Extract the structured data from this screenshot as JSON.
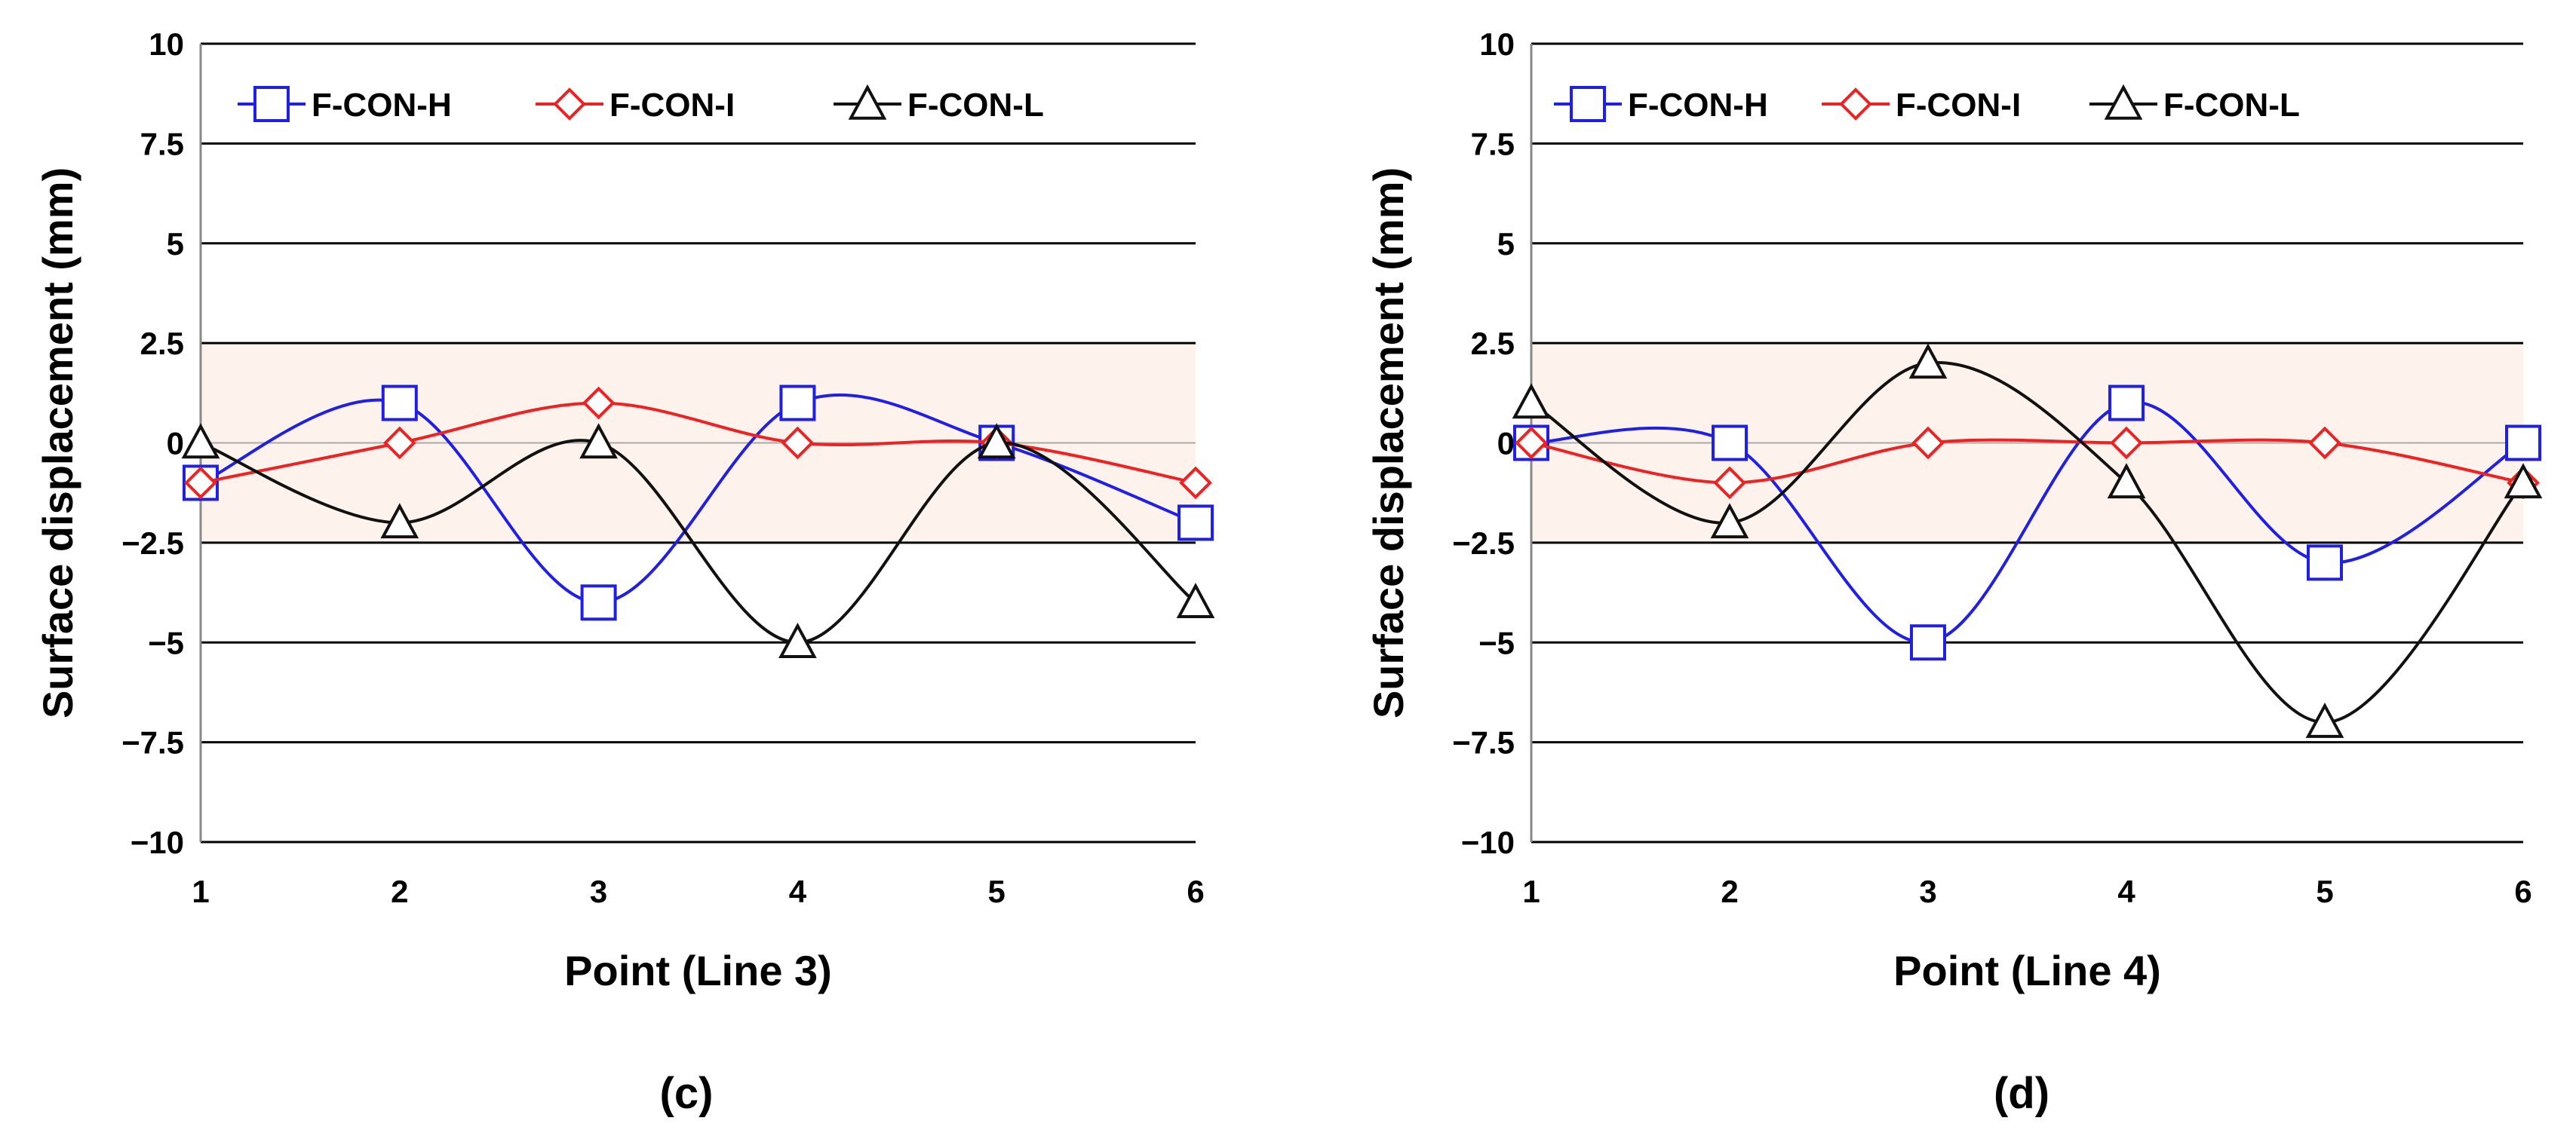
{
  "chart_data": [
    {
      "type": "line",
      "panel_label": "(c)",
      "xlabel": "Point (Line 3)",
      "ylabel": "Surface displacement (mm)",
      "x": [
        1,
        2,
        3,
        4,
        5,
        6
      ],
      "xticks": [
        "1",
        "2",
        "3",
        "4",
        "5",
        "6"
      ],
      "ylim": [
        -10,
        10
      ],
      "yticks": [
        10,
        7.5,
        5,
        2.5,
        0,
        -2.5,
        -5,
        -7.5,
        -10
      ],
      "ytick_labels": [
        "10",
        "7.5",
        "5",
        "2.5",
        "0",
        "−2.5",
        "−5",
        "−7.5",
        "−10"
      ],
      "shaded_band": [
        -2.5,
        2.5
      ],
      "grid": true,
      "legend_position": "top-left",
      "series": [
        {
          "name": "F-CON-H",
          "marker": "square",
          "color": "#1f1fe6",
          "values": [
            -1,
            1,
            -4,
            1,
            0,
            -2
          ]
        },
        {
          "name": "F-CON-I",
          "marker": "diamond",
          "color": "#ee2222",
          "values": [
            -1,
            0,
            1,
            0,
            0,
            -1
          ]
        },
        {
          "name": "F-CON-L",
          "marker": "triangle",
          "color": "#111111",
          "values": [
            0,
            -2,
            0,
            -5,
            0,
            -4
          ]
        }
      ]
    },
    {
      "type": "line",
      "panel_label": "(d)",
      "xlabel": "Point (Line 4)",
      "ylabel": "Surface displacement (mm)",
      "x": [
        1,
        2,
        3,
        4,
        5,
        6
      ],
      "xticks": [
        "1",
        "2",
        "3",
        "4",
        "5",
        "6"
      ],
      "ylim": [
        -10,
        10
      ],
      "yticks": [
        10,
        7.5,
        5,
        2.5,
        0,
        -2.5,
        -5,
        -7.5,
        -10
      ],
      "ytick_labels": [
        "10",
        "7.5",
        "5",
        "2.5",
        "0",
        "−2.5",
        "−5",
        "−7.5",
        "−10"
      ],
      "shaded_band": [
        -2.5,
        2.5
      ],
      "grid": true,
      "legend_position": "top-left",
      "series": [
        {
          "name": "F-CON-H",
          "marker": "square",
          "color": "#1f1fe6",
          "values": [
            0,
            0,
            -5,
            1,
            -3,
            0
          ]
        },
        {
          "name": "F-CON-I",
          "marker": "diamond",
          "color": "#ee2222",
          "values": [
            0,
            -1,
            0,
            0,
            0,
            -1
          ]
        },
        {
          "name": "F-CON-L",
          "marker": "triangle",
          "color": "#111111",
          "values": [
            1,
            -2,
            2,
            -1,
            -7,
            -1
          ]
        }
      ]
    }
  ]
}
